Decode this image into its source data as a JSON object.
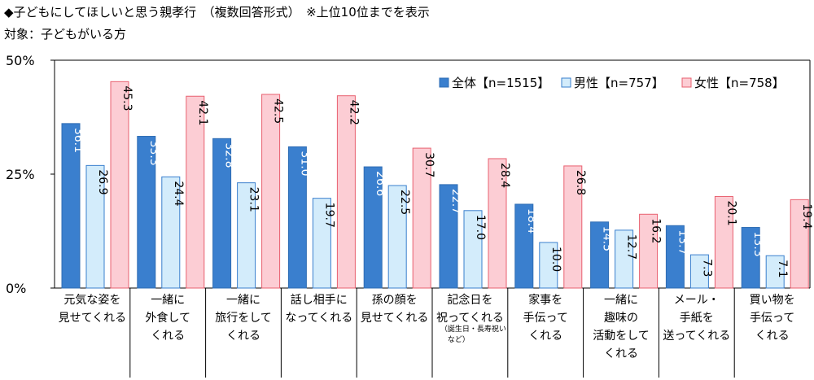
{
  "header": {
    "title": "◆子どもにしてほしいと思う親孝行　（複数回答形式）　※上位10位までを表示",
    "target": "対象：子どもがいる方"
  },
  "chart_data": {
    "type": "bar",
    "ylim": [
      0,
      50
    ],
    "yticks": [
      0,
      25,
      50
    ],
    "ytick_labels": [
      "0%",
      "25%",
      "50%"
    ],
    "grid": false,
    "legend_position": "top-right",
    "categories": [
      [
        "元気な姿を",
        "見せてくれる"
      ],
      [
        "一緒に",
        "外食して",
        "くれる"
      ],
      [
        "一緒に",
        "旅行をして",
        "くれる"
      ],
      [
        "話し相手に",
        "なってくれる"
      ],
      [
        "孫の顔を",
        "見せてくれる"
      ],
      [
        "記念日を",
        "祝ってくれる"
      ],
      [
        "家事を",
        "手伝って",
        "くれる"
      ],
      [
        "一緒に",
        "趣味の",
        "活動をして",
        "くれる"
      ],
      [
        "メール・",
        "手紙を",
        "送ってくれる"
      ],
      [
        "買い物を",
        "手伝って",
        "くれる"
      ]
    ],
    "category_notes": [
      "",
      "",
      "",
      "",
      "",
      "（誕生日・長寿祝い など）",
      "",
      "",
      "",
      ""
    ],
    "series": [
      {
        "name": "全体【n=1515】",
        "color": "#3a7fce",
        "stroke": "#2f6db4",
        "label_color": "#ffffff",
        "values": [
          36.1,
          33.3,
          32.8,
          31.0,
          26.6,
          22.7,
          18.4,
          14.5,
          13.7,
          13.3
        ]
      },
      {
        "name": "男性【n=757】",
        "color": "#d3ecfb",
        "stroke": "#3a7fce",
        "label_color": "#000000",
        "values": [
          26.9,
          24.4,
          23.1,
          19.7,
          22.5,
          17.0,
          10.0,
          12.7,
          7.3,
          7.1
        ]
      },
      {
        "name": "女性【n=758】",
        "color": "#fccdd4",
        "stroke": "#e8606f",
        "label_color": "#000000",
        "values": [
          45.3,
          42.1,
          42.5,
          42.2,
          30.7,
          28.4,
          26.8,
          16.2,
          20.1,
          19.4
        ]
      }
    ]
  }
}
